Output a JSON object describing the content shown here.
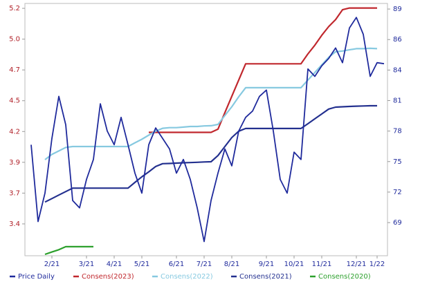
{
  "chart_data": {
    "type": "line",
    "categories": [
      null,
      null,
      null,
      "2/21",
      null,
      null,
      null,
      null,
      "3/21",
      null,
      null,
      null,
      "4/21",
      null,
      null,
      null,
      "5/21",
      null,
      null,
      null,
      null,
      "6/21",
      null,
      null,
      null,
      "7/21",
      null,
      null,
      null,
      "8/21",
      null,
      null,
      null,
      null,
      "9/21",
      null,
      null,
      null,
      "10/21",
      null,
      null,
      null,
      "11/21",
      null,
      null,
      null,
      null,
      "12/21",
      null,
      null,
      "1/22",
      null
    ],
    "ylim": [
      3.118,
      5.289
    ],
    "yticks": [
      {
        "value": 3.392,
        "label": "3.4"
      },
      {
        "value": 3.657,
        "label": "3.7"
      },
      {
        "value": 3.922,
        "label": "3.9"
      },
      {
        "value": 4.187,
        "label": "4.2"
      },
      {
        "value": 4.452,
        "label": "4.5"
      },
      {
        "value": 4.717,
        "label": "4.7"
      },
      {
        "value": 4.982,
        "label": "5.0"
      },
      {
        "value": 5.247,
        "label": "5.2"
      }
    ],
    "y2lim": [
      65.85,
      89.83
    ],
    "y2ticks": [
      69,
      {
        "value": 71.9,
        "label": "72"
      },
      {
        "value": 74.8,
        "label": "75"
      },
      {
        "value": 77.7,
        "label": "78"
      },
      {
        "value": 80.6,
        "label": "81"
      },
      {
        "value": 83.5,
        "label": "84"
      },
      {
        "value": 86.4,
        "label": "86"
      },
      {
        "value": 89.3,
        "label": "89"
      }
    ],
    "series": [
      {
        "name": "Price Daily",
        "color": "#1f2a9c",
        "axis": "y2",
        "values": [
          76.4,
          69.1,
          71.8,
          77.0,
          81.0,
          78.3,
          71.1,
          70.4,
          73.1,
          75.0,
          80.3,
          77.7,
          76.4,
          79.0,
          76.4,
          73.7,
          71.8,
          76.4,
          78.0,
          77.0,
          76.0,
          73.7,
          75.0,
          73.1,
          70.4,
          67.2,
          71.1,
          73.7,
          76.0,
          74.4,
          77.7,
          79.0,
          79.6,
          81.0,
          81.6,
          77.7,
          73.1,
          71.8,
          75.7,
          75.0,
          83.6,
          82.9,
          83.9,
          84.6,
          85.6,
          84.2,
          87.5,
          88.5,
          86.9,
          82.9,
          84.2,
          84.1
        ]
      },
      {
        "name": "Consens(2023)",
        "color": "#c0272d",
        "values": [
          null,
          null,
          null,
          null,
          null,
          null,
          null,
          null,
          null,
          null,
          null,
          null,
          null,
          null,
          null,
          null,
          null,
          4.18,
          4.18,
          4.18,
          4.18,
          4.18,
          4.18,
          4.18,
          4.18,
          4.18,
          4.18,
          4.207,
          4.35,
          4.49,
          4.63,
          4.77,
          4.77,
          4.77,
          4.77,
          4.77,
          4.77,
          4.77,
          4.77,
          4.77,
          4.855,
          4.93,
          5.015,
          5.09,
          5.15,
          5.235,
          5.25,
          5.25,
          5.25,
          5.25,
          5.25,
          null
        ]
      },
      {
        "name": "Consens(2022)",
        "color": "#86c9e0",
        "values": [
          null,
          null,
          3.945,
          3.99,
          4.02,
          4.05,
          4.058,
          4.058,
          4.058,
          4.058,
          4.058,
          4.058,
          4.058,
          4.058,
          4.058,
          4.09,
          4.12,
          4.156,
          4.19,
          4.215,
          4.22,
          4.22,
          4.225,
          4.23,
          4.23,
          4.235,
          4.237,
          4.248,
          4.325,
          4.4,
          4.486,
          4.564,
          4.564,
          4.564,
          4.564,
          4.564,
          4.564,
          4.564,
          4.564,
          4.564,
          4.63,
          4.695,
          4.76,
          4.825,
          4.873,
          4.88,
          4.89,
          4.9,
          4.9,
          4.903,
          4.9,
          null
        ]
      },
      {
        "name": "Consens(2021)",
        "color": "#23308f",
        "values": [
          null,
          null,
          3.58,
          3.61,
          3.64,
          3.67,
          3.7,
          3.7,
          3.7,
          3.7,
          3.7,
          3.7,
          3.7,
          3.7,
          3.7,
          3.749,
          3.797,
          3.84,
          3.886,
          3.91,
          3.912,
          3.915,
          3.918,
          3.92,
          3.922,
          3.925,
          3.927,
          3.98,
          4.058,
          4.135,
          4.19,
          4.213,
          4.213,
          4.213,
          4.213,
          4.213,
          4.213,
          4.213,
          4.213,
          4.213,
          4.254,
          4.296,
          4.338,
          4.38,
          4.397,
          4.4,
          4.403,
          4.405,
          4.407,
          4.409,
          4.409,
          null
        ]
      },
      {
        "name": "Consens(2020)",
        "color": "#2ca02c",
        "values": [
          null,
          null,
          3.13,
          3.15,
          3.17,
          3.196,
          3.196,
          3.196,
          3.196,
          3.196,
          null,
          null,
          null,
          null,
          null,
          null,
          null,
          null,
          null,
          null,
          null,
          null,
          null,
          null,
          null,
          null,
          null,
          null,
          null,
          null,
          null,
          null,
          null,
          null,
          null,
          null,
          null,
          null,
          null,
          null,
          null,
          null,
          null,
          null,
          null,
          null,
          null,
          null,
          null,
          null,
          null,
          null
        ]
      }
    ]
  }
}
